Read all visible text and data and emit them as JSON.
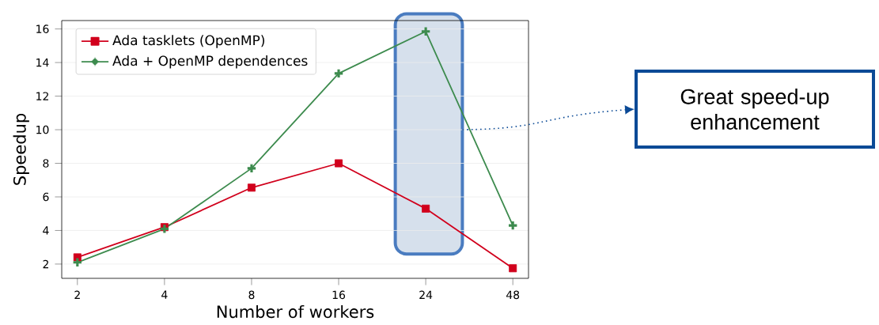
{
  "chart_data": {
    "type": "line",
    "xlabel": "Number of workers",
    "ylabel": "Speedup",
    "categories": [
      "2",
      "4",
      "8",
      "16",
      "24",
      "48"
    ],
    "series": [
      {
        "name": "Ada tasklets (OpenMP)",
        "color": "#d1001c",
        "marker": "square",
        "values": [
          2.4,
          4.2,
          6.55,
          8.0,
          5.3,
          1.75
        ]
      },
      {
        "name": "Ada + OpenMP dependences",
        "color": "#3d8b4e",
        "marker": "cross",
        "values": [
          2.1,
          4.1,
          7.7,
          13.35,
          15.85,
          4.3
        ]
      }
    ],
    "ylim": [
      1.15,
      16.5
    ],
    "yticks": [
      2,
      4,
      6,
      8,
      10,
      12,
      14,
      16
    ],
    "grid": "y",
    "legend": "top left",
    "annotations": [
      "Great speed-up enhancement"
    ]
  }
}
